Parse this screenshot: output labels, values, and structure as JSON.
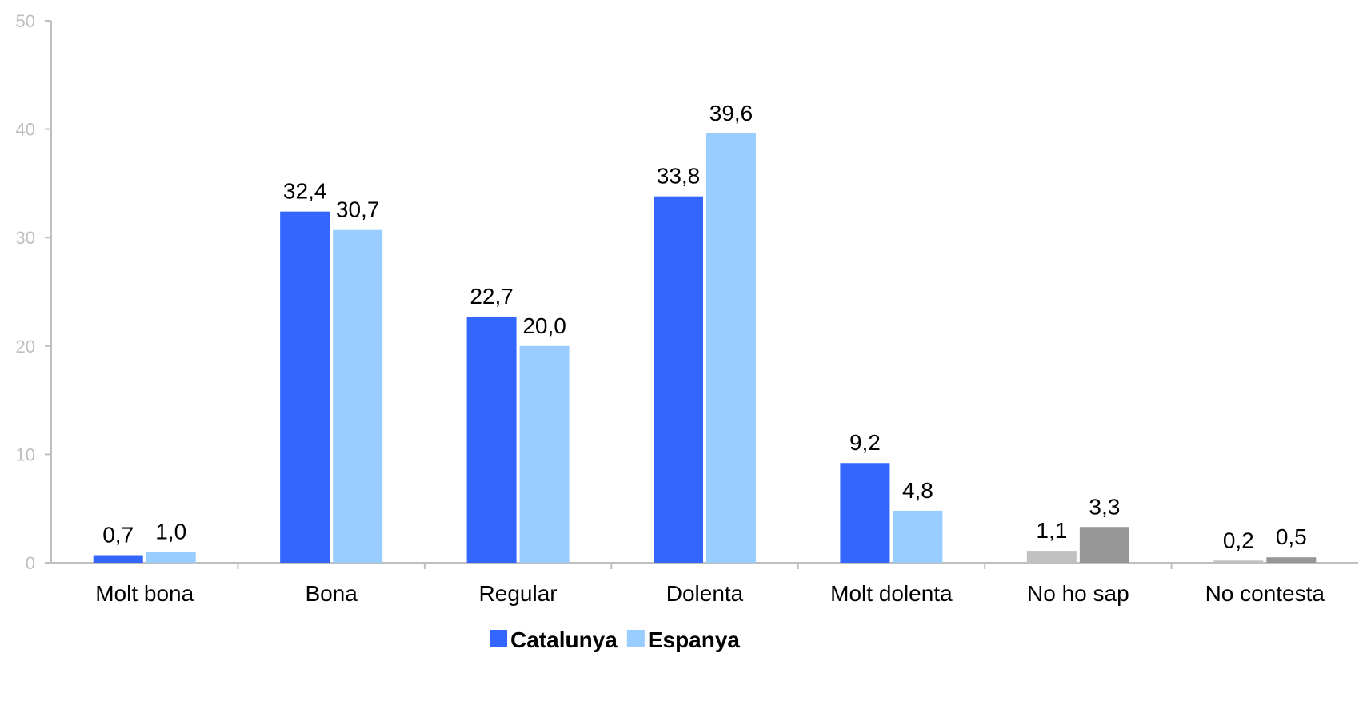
{
  "chart_data": {
    "type": "bar",
    "categories": [
      "Molt bona",
      "Bona",
      "Regular",
      "Dolenta",
      "Molt dolenta",
      "No ho sap",
      "No contesta"
    ],
    "series": [
      {
        "name": "Catalunya",
        "color": "#3366ff",
        "values": [
          0.7,
          32.4,
          22.7,
          33.8,
          9.2,
          1.1,
          0.2
        ],
        "labels": [
          "0,7",
          "32,4",
          "22,7",
          "33,8",
          "9,2",
          "1,1",
          "0,2"
        ]
      },
      {
        "name": "Espanya",
        "color": "#99ccff",
        "values": [
          1.0,
          30.7,
          20.0,
          39.6,
          4.8,
          3.3,
          0.5
        ],
        "labels": [
          "1,0",
          "30,7",
          "20,0",
          "39,6",
          "4,8",
          "3,3",
          "0,5"
        ]
      }
    ],
    "special_category_colors": {
      "No ho sap": [
        "#c0c0c0",
        "#969696"
      ],
      "No contesta": [
        "#c0c0c0",
        "#969696"
      ]
    },
    "ylim": [
      0,
      50
    ],
    "yticks": [
      "0",
      "10",
      "20",
      "30",
      "40",
      "50"
    ],
    "title": "",
    "xlabel": "",
    "ylabel": "",
    "grid": false,
    "legend": "bottom-center",
    "axis_color": "#bfbfbf"
  }
}
